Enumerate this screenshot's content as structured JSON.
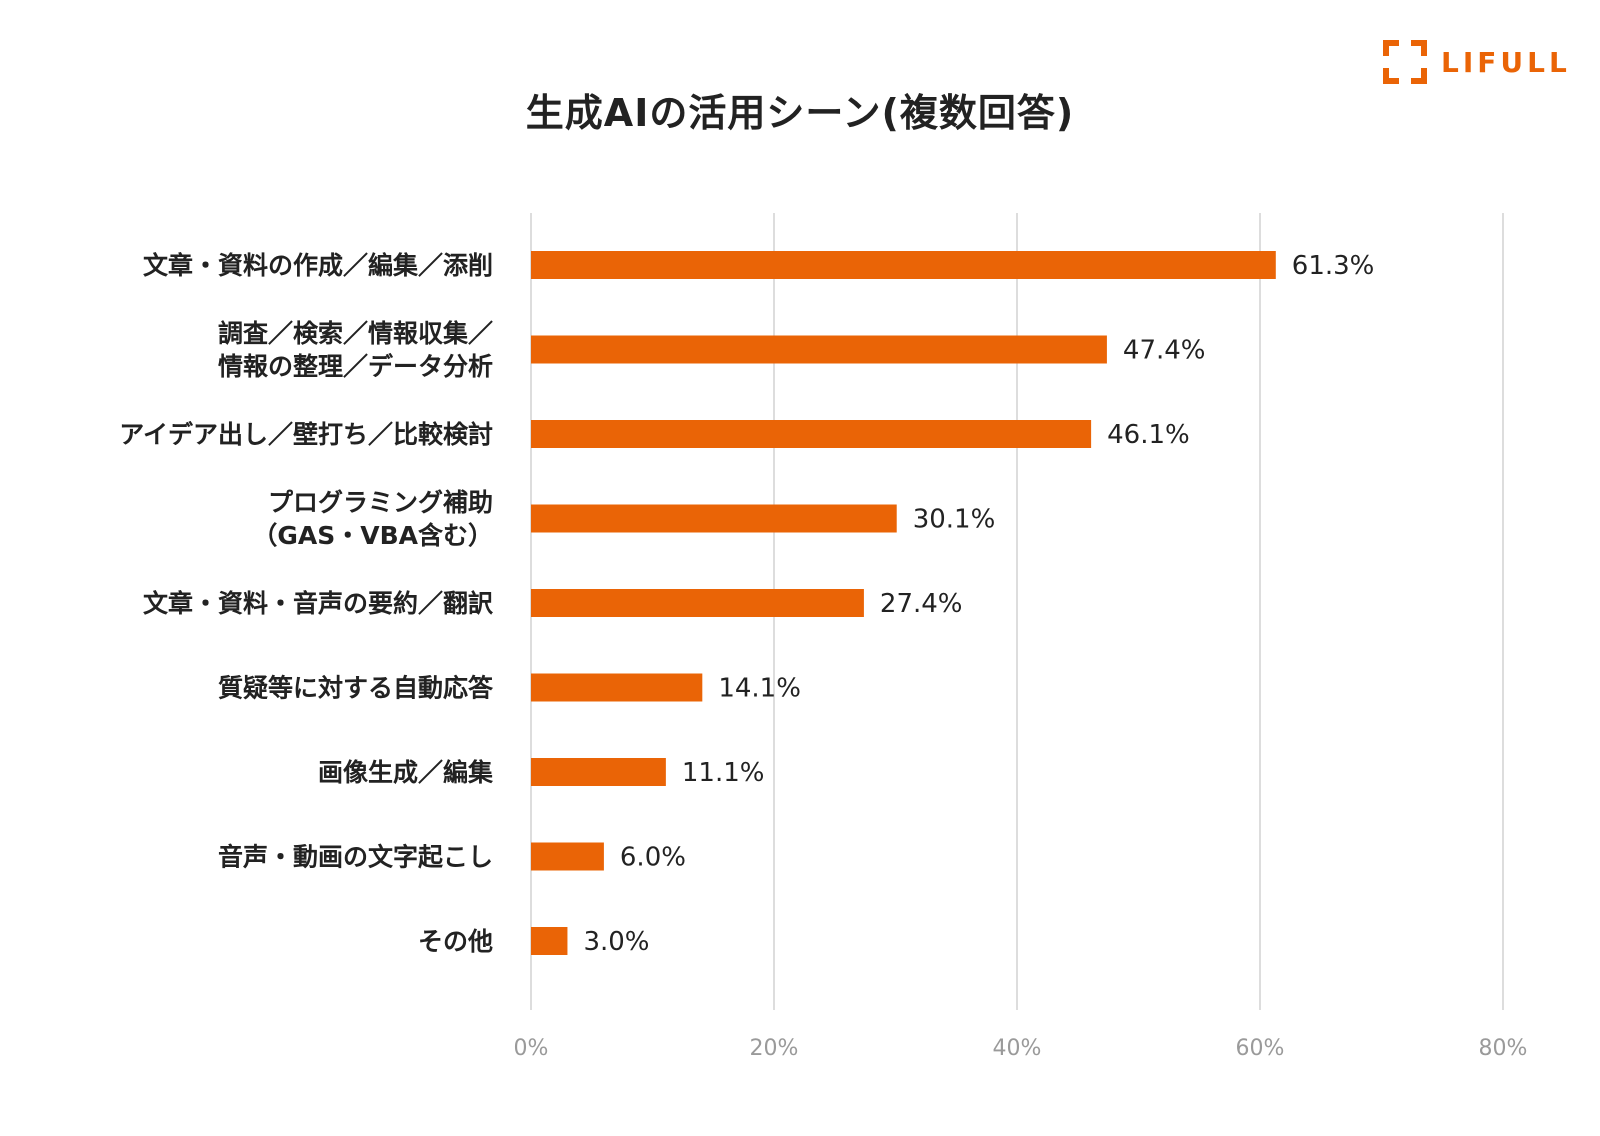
{
  "brand": {
    "name": "LIFULL",
    "accent_color": "#ea6406"
  },
  "chart_data": {
    "type": "bar",
    "orientation": "horizontal",
    "title": "生成AIの活用シーン(複数回答)",
    "categories": [
      [
        "文章・資料の作成／編集／添削"
      ],
      [
        "調査／検索／情報収集／",
        "情報の整理／データ分析"
      ],
      [
        "アイデア出し／壁打ち／比較検討"
      ],
      [
        "プログラミング補助",
        "（GAS・VBA含む）"
      ],
      [
        "文章・資料・音声の要約／翻訳"
      ],
      [
        "質疑等に対する自動応答"
      ],
      [
        "画像生成／編集"
      ],
      [
        "音声・動画の文字起こし"
      ],
      [
        "その他"
      ]
    ],
    "values": [
      61.3,
      47.4,
      46.1,
      30.1,
      27.4,
      14.1,
      11.1,
      6.0,
      3.0
    ],
    "value_labels": [
      "61.3%",
      "47.4%",
      "46.1%",
      "30.1%",
      "27.4%",
      "14.1%",
      "11.1%",
      "6.0%",
      "3.0%"
    ],
    "xlim": [
      0,
      80
    ],
    "xticks": [
      0,
      20,
      40,
      60,
      80
    ],
    "xtick_labels": [
      "0%",
      "20%",
      "40%",
      "60%",
      "80%"
    ],
    "grid": true,
    "bar_color": "#ea6406",
    "grid_color": "#dddddd"
  }
}
